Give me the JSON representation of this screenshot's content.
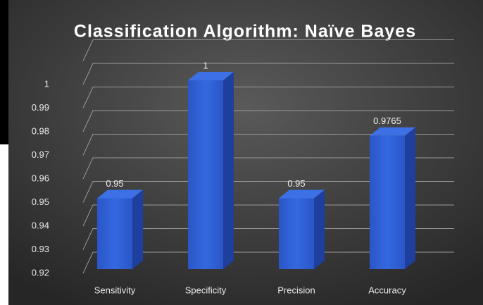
{
  "chart_data": {
    "type": "bar3d",
    "title": "Classification Algorithm: Naïve Bayes",
    "categories": [
      "Sensitivity",
      "Specificity",
      "Precision",
      "Accuracy"
    ],
    "values": [
      0.95,
      1,
      0.95,
      0.9765
    ],
    "color": "#2f5fd2",
    "ylim": [
      0.92,
      1.01
    ],
    "yticks": [
      0.92,
      0.93,
      0.94,
      0.95,
      0.96,
      0.97,
      0.98,
      0.99,
      1
    ],
    "grid": true
  }
}
